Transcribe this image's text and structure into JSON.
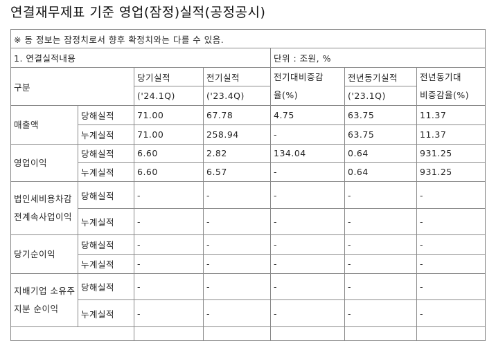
{
  "title": "연결재무제표 기준 영업(잠정)실적(공정공시)",
  "notice": "※ 동 정보는 잠정치로서 향후 확정치와는 다를 수 있음.",
  "section_label": "1. 연결실적내용",
  "unit_label": "단위 : 조원, %",
  "header": {
    "category": "구분",
    "current": "당기실적",
    "current_period": "('24.1Q)",
    "previous": "전기실적",
    "previous_period": "('23.4Q)",
    "qoq": "전기대비증감",
    "qoq2": "율(%)",
    "yoy_base": "전년동기실적",
    "yoy_base_period": "('23.1Q)",
    "yoy": "전년동기대",
    "yoy2": "비증감율(%)"
  },
  "rows": [
    {
      "name": "매출액",
      "sub": [
        {
          "label": "당해실적",
          "values": [
            "71.00",
            "67.78",
            "4.75",
            "63.75",
            "11.37"
          ]
        },
        {
          "label": "누계실적",
          "values": [
            "71.00",
            "258.94",
            "-",
            "63.75",
            "11.37"
          ]
        }
      ]
    },
    {
      "name": "영업이익",
      "sub": [
        {
          "label": "당해실적",
          "values": [
            "6.60",
            "2.82",
            "134.04",
            "0.64",
            "931.25"
          ]
        },
        {
          "label": "누계실적",
          "values": [
            "6.60",
            "6.57",
            "-",
            "0.64",
            "931.25"
          ]
        }
      ]
    },
    {
      "name": "법인세비용차감전계속사업이익",
      "sub": [
        {
          "label": "당해실적",
          "values": [
            "-",
            "-",
            "-",
            "-",
            "-"
          ]
        },
        {
          "label": "누계실적",
          "values": [
            "-",
            "-",
            "-",
            "-",
            "-"
          ]
        }
      ]
    },
    {
      "name": "당기순이익",
      "sub": [
        {
          "label": "당해실적",
          "values": [
            "-",
            "-",
            "-",
            "-",
            "-"
          ]
        },
        {
          "label": "누계실적",
          "values": [
            "-",
            "-",
            "-",
            "-",
            "-"
          ]
        }
      ]
    },
    {
      "name": "지배기업 소유주지분 순이익",
      "sub": [
        {
          "label": "당해실적",
          "values": [
            "-",
            "-",
            "-",
            "-",
            "-"
          ]
        },
        {
          "label": "누계실적",
          "values": [
            "-",
            "-",
            "-",
            "-",
            "-"
          ]
        }
      ]
    }
  ]
}
